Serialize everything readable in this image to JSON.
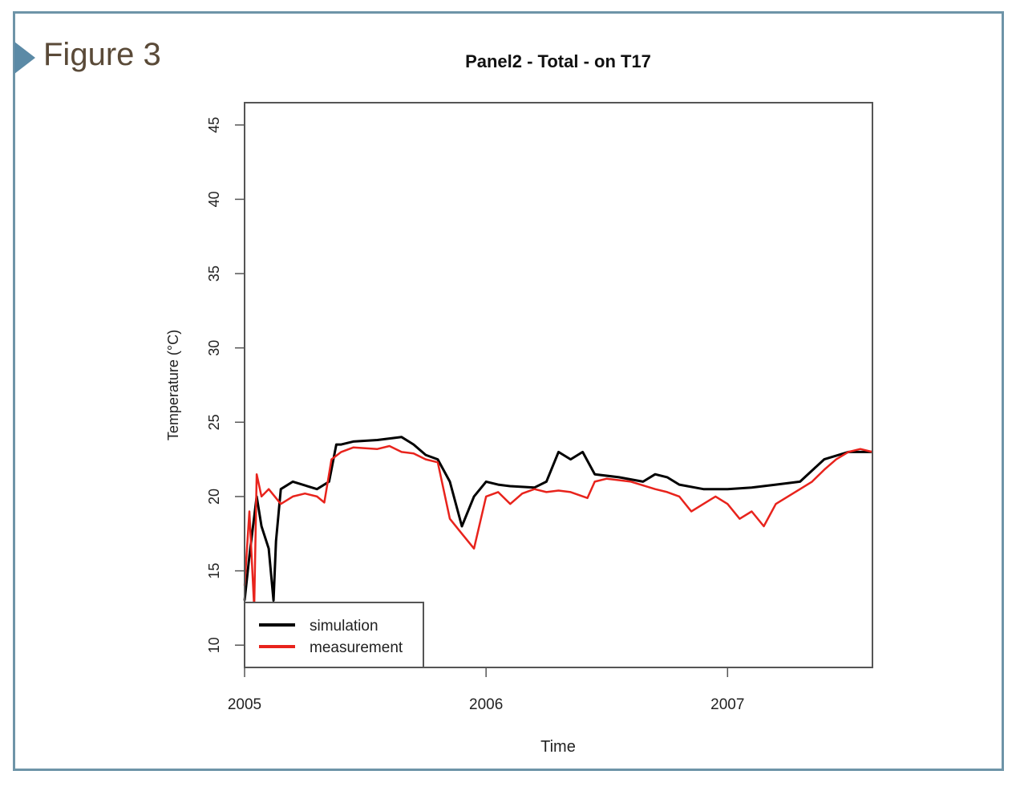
{
  "figure_label": "Figure 3",
  "colors": {
    "frame": "#6e94a8",
    "marker": "#5b8aa6",
    "figure_label": "#5a4a38",
    "simulation": "#000000",
    "measurement": "#e8231c"
  },
  "chart_data": {
    "type": "line",
    "title": "Panel2 - Total - on T17",
    "xlabel": "Time",
    "ylabel": "Temperature (°C)",
    "xlim": [
      2005.0,
      2007.6
    ],
    "ylim": [
      8.5,
      46.5
    ],
    "x_ticks": [
      2005,
      2006,
      2007
    ],
    "x_tick_labels": [
      "2005",
      "2006",
      "2007"
    ],
    "y_ticks": [
      10,
      15,
      20,
      25,
      30,
      35,
      40,
      45
    ],
    "y_tick_labels": [
      "10",
      "15",
      "20",
      "25",
      "30",
      "35",
      "40",
      "45"
    ],
    "grid": false,
    "legend_position": "bottom-left",
    "series": [
      {
        "name": "simulation",
        "color": "#000000",
        "x": [
          2005.0,
          2005.02,
          2005.05,
          2005.07,
          2005.1,
          2005.12,
          2005.13,
          2005.15,
          2005.2,
          2005.3,
          2005.35,
          2005.38,
          2005.4,
          2005.45,
          2005.55,
          2005.65,
          2005.7,
          2005.75,
          2005.8,
          2005.85,
          2005.9,
          2005.95,
          2006.0,
          2006.05,
          2006.1,
          2006.2,
          2006.25,
          2006.3,
          2006.35,
          2006.4,
          2006.45,
          2006.55,
          2006.65,
          2006.7,
          2006.75,
          2006.8,
          2006.9,
          2007.0,
          2007.1,
          2007.2,
          2007.3,
          2007.4,
          2007.5,
          2007.6
        ],
        "y": [
          13.0,
          16.0,
          20.0,
          18.0,
          16.5,
          13.0,
          17.0,
          20.5,
          21.0,
          20.5,
          21.0,
          23.5,
          23.5,
          23.7,
          23.8,
          24.0,
          23.5,
          22.8,
          22.5,
          21.0,
          18.0,
          20.0,
          21.0,
          20.8,
          20.7,
          20.6,
          21.0,
          23.0,
          22.5,
          23.0,
          21.5,
          21.3,
          21.0,
          21.5,
          21.3,
          20.8,
          20.5,
          20.5,
          20.6,
          20.8,
          21.0,
          22.5,
          23.0,
          23.0
        ]
      },
      {
        "name": "measurement",
        "color": "#e8231c",
        "x": [
          2005.0,
          2005.02,
          2005.04,
          2005.05,
          2005.07,
          2005.1,
          2005.15,
          2005.2,
          2005.25,
          2005.3,
          2005.33,
          2005.36,
          2005.4,
          2005.45,
          2005.55,
          2005.6,
          2005.65,
          2005.7,
          2005.75,
          2005.8,
          2005.85,
          2005.9,
          2005.95,
          2006.0,
          2006.05,
          2006.1,
          2006.15,
          2006.2,
          2006.25,
          2006.3,
          2006.35,
          2006.42,
          2006.45,
          2006.5,
          2006.6,
          2006.7,
          2006.75,
          2006.8,
          2006.85,
          2006.9,
          2006.95,
          2007.0,
          2007.05,
          2007.1,
          2007.15,
          2007.2,
          2007.25,
          2007.3,
          2007.35,
          2007.4,
          2007.45,
          2007.5,
          2007.55,
          2007.6
        ],
        "y": [
          14.0,
          19.0,
          12.5,
          21.5,
          20.0,
          20.5,
          19.5,
          20.0,
          20.2,
          20.0,
          19.6,
          22.5,
          23.0,
          23.3,
          23.2,
          23.4,
          23.0,
          22.9,
          22.5,
          22.3,
          18.5,
          17.5,
          16.5,
          20.0,
          20.3,
          19.5,
          20.2,
          20.5,
          20.3,
          20.4,
          20.3,
          19.9,
          21.0,
          21.2,
          21.0,
          20.5,
          20.3,
          20.0,
          19.0,
          19.5,
          20.0,
          19.5,
          18.5,
          19.0,
          18.0,
          19.5,
          20.0,
          20.5,
          21.0,
          21.8,
          22.5,
          23.0,
          23.2,
          23.0
        ]
      }
    ]
  }
}
